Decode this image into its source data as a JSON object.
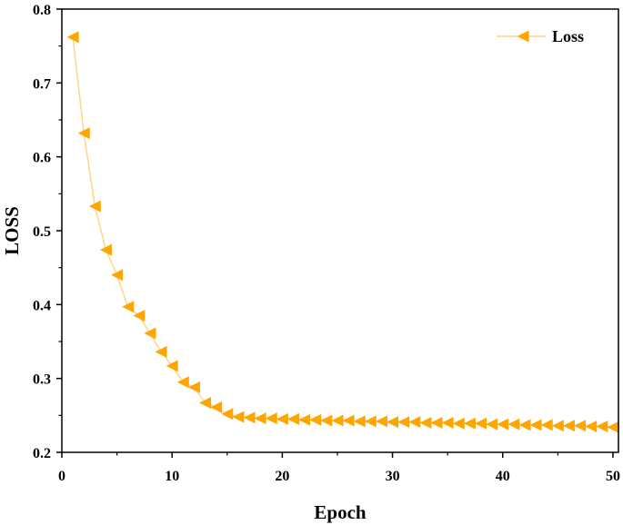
{
  "chart_data": {
    "type": "line",
    "xlabel": "Epoch",
    "ylabel": "LOSS",
    "xlim": [
      0,
      50.5
    ],
    "ylim": [
      0.2,
      0.8
    ],
    "x_ticks": [
      0,
      10,
      20,
      30,
      40,
      50
    ],
    "y_ticks": [
      0.2,
      0.3,
      0.4,
      0.5,
      0.6,
      0.7,
      0.8
    ],
    "grid": false,
    "legend_position": "top-right",
    "marker": "left-triangle",
    "colors": {
      "line": "#FFD58A",
      "marker": "#FFA500"
    },
    "series": [
      {
        "name": "Loss",
        "x": [
          1,
          2,
          3,
          4,
          5,
          6,
          7,
          8,
          9,
          10,
          11,
          12,
          13,
          14,
          15,
          16,
          17,
          18,
          19,
          20,
          21,
          22,
          23,
          24,
          25,
          26,
          27,
          28,
          29,
          30,
          31,
          32,
          33,
          34,
          35,
          36,
          37,
          38,
          39,
          40,
          41,
          42,
          43,
          44,
          45,
          46,
          47,
          48,
          49,
          50
        ],
        "values": [
          0.762,
          0.632,
          0.533,
          0.474,
          0.44,
          0.397,
          0.385,
          0.361,
          0.336,
          0.317,
          0.295,
          0.288,
          0.267,
          0.261,
          0.252,
          0.248,
          0.247,
          0.246,
          0.246,
          0.245,
          0.245,
          0.244,
          0.244,
          0.243,
          0.243,
          0.243,
          0.242,
          0.242,
          0.242,
          0.241,
          0.241,
          0.241,
          0.24,
          0.24,
          0.24,
          0.239,
          0.239,
          0.239,
          0.238,
          0.238,
          0.238,
          0.237,
          0.237,
          0.237,
          0.236,
          0.236,
          0.236,
          0.235,
          0.235,
          0.234
        ]
      }
    ]
  }
}
